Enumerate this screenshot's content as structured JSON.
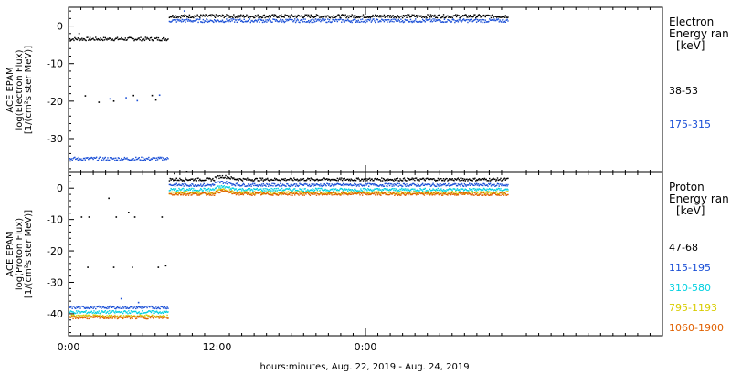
{
  "xlabel": "hours:minutes, Aug. 22, 2019 - Aug. 24, 2019",
  "xticks": [
    "0:00",
    "12:00",
    "0:00"
  ],
  "chart_data": [
    {
      "type": "scatter",
      "ylabel": [
        "ACE EPAM",
        "log(Electron Flux)",
        "[1/(cm²s ster MeV)]"
      ],
      "ylim": [
        -39,
        5
      ],
      "xlim_hours": [
        0,
        48
      ],
      "yticks": [
        0,
        -10,
        -20,
        -30
      ],
      "legend": {
        "title": [
          "Electron",
          "Energy ran",
          "[keV]"
        ],
        "placement": "right"
      },
      "series": [
        {
          "name": "38-53",
          "color": "#000000",
          "segments": [
            {
              "x": [
                0,
                8
              ],
              "y": -3.3,
              "note_levels": []
            },
            {
              "x": [
                8.1,
                35.5
              ],
              "y": 2.8
            }
          ],
          "extras": [
            [
              0.8,
              -1.8
            ],
            [
              1.3,
              -18.4
            ],
            [
              2.4,
              -20.1
            ],
            [
              3.6,
              -19.8
            ],
            [
              5.2,
              -18.3
            ],
            [
              6.7,
              -18.3
            ],
            [
              7.0,
              -19.5
            ]
          ]
        },
        {
          "name": "175-315",
          "color": "#1a4fd6",
          "segments": [
            {
              "x": [
                0,
                8
              ],
              "y": -35.2
            },
            {
              "x": [
                8.1,
                35.5
              ],
              "y": 1.6
            }
          ],
          "extras": [
            [
              3.3,
              -19.2
            ],
            [
              4.6,
              -18.9
            ],
            [
              5.5,
              -19.7
            ],
            [
              7.3,
              -18.2
            ],
            [
              9.3,
              4.2
            ]
          ]
        }
      ]
    },
    {
      "type": "scatter",
      "ylabel": [
        "ACE EPAM",
        "log(Proton Flux)",
        "[1/(cm²s ster MeV)]"
      ],
      "ylim": [
        -47,
        5
      ],
      "xlim_hours": [
        0,
        48
      ],
      "yticks": [
        0,
        -10,
        -20,
        -30,
        -40
      ],
      "legend": {
        "title": [
          "Proton",
          "Energy ran",
          "[keV]"
        ],
        "placement": "right"
      },
      "series": [
        {
          "name": "47-68",
          "color": "#000000",
          "segments": [
            {
              "x": [
                8.1,
                35.5
              ],
              "y": 3.0
            }
          ],
          "extras": [
            [
              1.0,
              -9
            ],
            [
              1.6,
              -9
            ],
            [
              3.2,
              -3
            ],
            [
              3.8,
              -9
            ],
            [
              4.8,
              -7.5
            ],
            [
              5.3,
              -9
            ],
            [
              7.5,
              -9
            ],
            [
              1.5,
              -25
            ],
            [
              3.6,
              -25
            ],
            [
              5.1,
              -25
            ],
            [
              7.2,
              -25
            ],
            [
              7.8,
              -24.5
            ],
            [
              8.5,
              4.8
            ],
            [
              9.5,
              5.5
            ]
          ]
        },
        {
          "name": "115-195",
          "color": "#1a4fd6",
          "segments": [
            {
              "x": [
                0,
                8
              ],
              "y": -37.8
            },
            {
              "x": [
                8.1,
                35.5
              ],
              "y": 1.2
            }
          ],
          "extras": [
            [
              4.2,
              -35.0
            ],
            [
              5.6,
              -36.2
            ]
          ]
        },
        {
          "name": "310-580",
          "color": "#00d0e0",
          "segments": [
            {
              "x": [
                0,
                8
              ],
              "y": -39.3
            },
            {
              "x": [
                8.1,
                35.5
              ],
              "y": -0.3
            }
          ]
        },
        {
          "name": "795-1193",
          "color": "#d8cc00",
          "segments": [
            {
              "x": [
                0,
                8
              ],
              "y": -40.6
            },
            {
              "x": [
                8.1,
                35.5
              ],
              "y": -1.3
            }
          ]
        },
        {
          "name": "1060-1900",
          "color": "#e06000",
          "segments": [
            {
              "x": [
                0,
                8
              ],
              "y": -41.0
            },
            {
              "x": [
                8.1,
                35.5
              ],
              "y": -1.7
            }
          ]
        }
      ]
    }
  ]
}
